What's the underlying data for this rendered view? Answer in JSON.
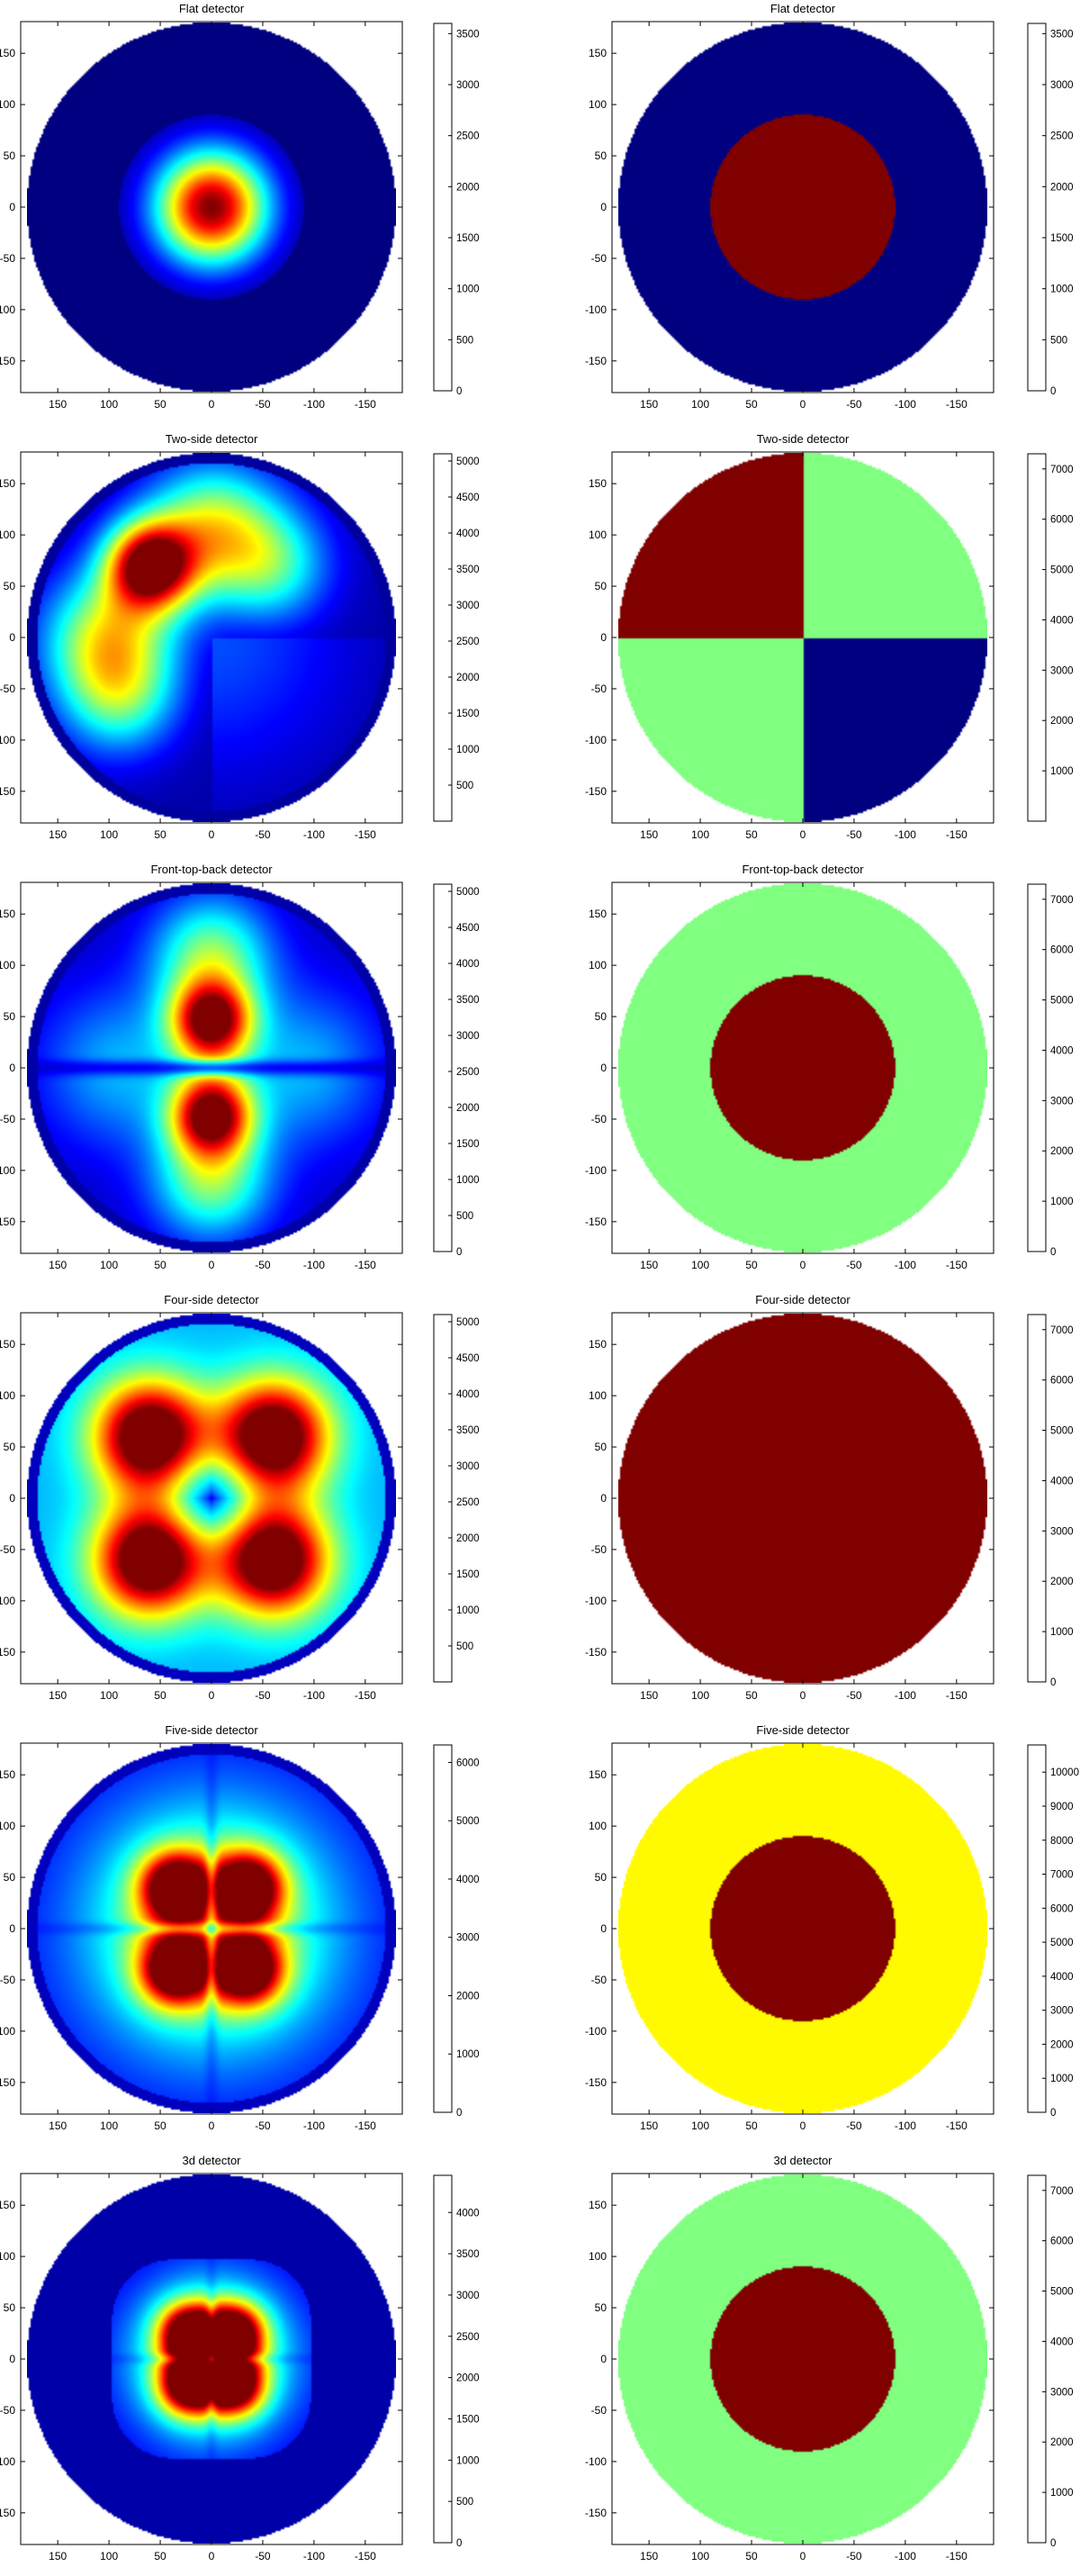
{
  "colormap": "jet",
  "colormap_stops": [
    "#00007f",
    "#0000ff",
    "#00ffff",
    "#ffff00",
    "#ff0000",
    "#7f0000"
  ],
  "axis": {
    "xticks": [
      150,
      100,
      50,
      0,
      -50,
      -100,
      -150
    ],
    "yticks": [
      150,
      100,
      50,
      0,
      -50,
      -100,
      -150
    ],
    "xlim": [
      185,
      -185
    ],
    "ylim": [
      -185,
      185
    ],
    "grid": false
  },
  "chart_data": [
    {
      "type": "heatmap",
      "title": "Flat detector",
      "pattern": "flat",
      "clim": [
        0,
        3600
      ],
      "colorbar_ticks": [
        0,
        500,
        1000,
        1500,
        2000,
        2500,
        3000,
        3500
      ],
      "inner_radius": 90,
      "outer_radius": 180,
      "background_value": 0,
      "peak_value": 3600
    },
    {
      "type": "heatmap",
      "title": "Flat detector",
      "pattern": "binary_disc",
      "clim": [
        0,
        3600
      ],
      "colorbar_ticks": [
        0,
        500,
        1000,
        1500,
        2000,
        2500,
        3000,
        3500
      ],
      "inner_radius": 90,
      "outer_radius": 180,
      "inner_value": 3600,
      "outer_value": 0
    },
    {
      "type": "heatmap",
      "title": "Two-side detector",
      "pattern": "two_side",
      "clim": [
        0,
        5100
      ],
      "colorbar_ticks": [
        500,
        1000,
        1500,
        2000,
        2500,
        3000,
        3500,
        4000,
        4500,
        5000
      ],
      "inner_radius": 170,
      "outer_radius": 180,
      "peak_value": 5100
    },
    {
      "type": "heatmap",
      "title": "Two-side detector",
      "pattern": "quadrants",
      "clim": [
        0,
        7300
      ],
      "colorbar_ticks": [
        1000,
        2000,
        3000,
        4000,
        5000,
        6000,
        7000
      ],
      "outer_radius": 180,
      "quadrant_values": {
        "top_right": 7300,
        "top_left": 3650,
        "bottom_left": 0,
        "bottom_right": 3650
      }
    },
    {
      "type": "heatmap",
      "title": "Front-top-back detector",
      "pattern": "front_top_back",
      "clim": [
        0,
        5100
      ],
      "colorbar_ticks": [
        0,
        500,
        1000,
        1500,
        2000,
        2500,
        3000,
        3500,
        4000,
        4500,
        5000
      ],
      "inner_radius": 170,
      "outer_radius": 180,
      "peak_value": 5100
    },
    {
      "type": "heatmap",
      "title": "Front-top-back detector",
      "pattern": "binary_disc",
      "clim": [
        0,
        7300
      ],
      "colorbar_ticks": [
        0,
        1000,
        2000,
        3000,
        4000,
        5000,
        6000,
        7000
      ],
      "inner_radius": 90,
      "outer_radius": 180,
      "inner_value": 7300,
      "outer_value": 3650
    },
    {
      "type": "heatmap",
      "title": "Four-side detector",
      "pattern": "four_side",
      "clim": [
        0,
        5100
      ],
      "colorbar_ticks": [
        500,
        1000,
        1500,
        2000,
        2500,
        3000,
        3500,
        4000,
        4500,
        5000
      ],
      "inner_radius": 170,
      "outer_radius": 180,
      "peak_value": 5100
    },
    {
      "type": "heatmap",
      "title": "Four-side detector",
      "pattern": "uniform_disc",
      "clim": [
        0,
        7300
      ],
      "colorbar_ticks": [
        0,
        1000,
        2000,
        3000,
        4000,
        5000,
        6000,
        7000
      ],
      "outer_radius": 180,
      "value": 7300
    },
    {
      "type": "heatmap",
      "title": "Five-side detector",
      "pattern": "five_side",
      "clim": [
        0,
        6300
      ],
      "colorbar_ticks": [
        0,
        1000,
        2000,
        3000,
        4000,
        5000,
        6000
      ],
      "inner_radius": 170,
      "outer_radius": 180,
      "peak_value": 6300
    },
    {
      "type": "heatmap",
      "title": "Five-side detector",
      "pattern": "binary_disc",
      "clim": [
        0,
        10800
      ],
      "colorbar_ticks": [
        0,
        1000,
        2000,
        3000,
        4000,
        5000,
        6000,
        7000,
        8000,
        9000,
        10000
      ],
      "inner_radius": 90,
      "outer_radius": 180,
      "inner_value": 10800,
      "outer_value": 6800
    },
    {
      "type": "heatmap",
      "title": "3d detector",
      "pattern": "three_d",
      "clim": [
        0,
        4450
      ],
      "colorbar_ticks": [
        0,
        500,
        1000,
        1500,
        2000,
        2500,
        3000,
        3500,
        4000
      ],
      "inner_radius": 105,
      "outer_radius": 180,
      "peak_value": 4450
    },
    {
      "type": "heatmap",
      "title": "3d detector",
      "pattern": "binary_disc",
      "clim": [
        0,
        7300
      ],
      "colorbar_ticks": [
        0,
        1000,
        2000,
        3000,
        4000,
        5000,
        6000,
        7000
      ],
      "inner_radius": 90,
      "outer_radius": 180,
      "inner_value": 7300,
      "outer_value": 3650
    }
  ]
}
